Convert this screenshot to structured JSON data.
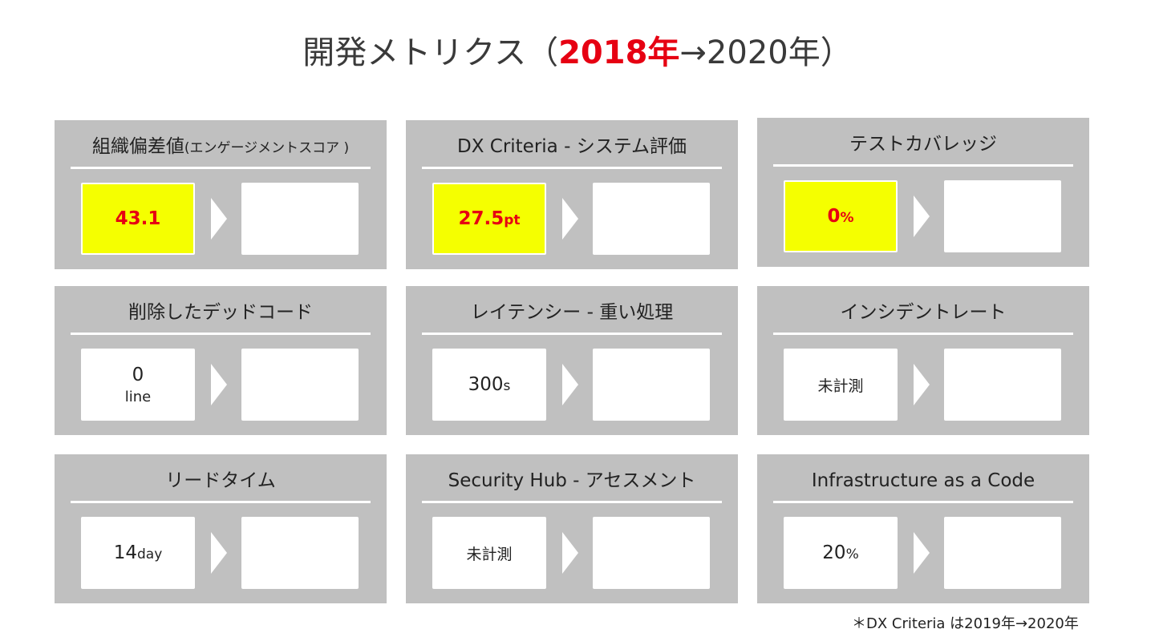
{
  "title": {
    "prefix": "開発メトリクス（",
    "highlight": "2018年",
    "suffix": "→2020年）"
  },
  "colors": {
    "card_background": "#c0c0c0",
    "highlight_red": "#e60012",
    "highlight_yellow": "#f5ff00"
  },
  "metrics": [
    {
      "label": "組織偏差値",
      "label_small": "(エンゲージメントスコア )",
      "value": "43.1",
      "unit": "",
      "highlighted": true
    },
    {
      "label": "DX Criteria - システム評価",
      "value": "27.5",
      "unit": "pt",
      "highlighted": true
    },
    {
      "label": "テストカバレッジ",
      "value": "0",
      "unit": "%",
      "highlighted": true
    },
    {
      "label": "削除したデッドコード",
      "value": "0",
      "unit": "line",
      "highlighted": false
    },
    {
      "label": "レイテンシー - 重い処理",
      "value": "300",
      "unit": "s",
      "highlighted": false
    },
    {
      "label": "インシデントレート",
      "value": "未計測",
      "unit": "",
      "highlighted": false
    },
    {
      "label": "リードタイム",
      "value": "14",
      "unit": "day",
      "highlighted": false
    },
    {
      "label": "Security Hub - アセスメント",
      "value": "未計測",
      "unit": "",
      "highlighted": false
    },
    {
      "label": "Infrastructure as a Code",
      "value": "20",
      "unit": "%",
      "highlighted": false
    }
  ],
  "footnote": "＊DX Criteria は2019年→2020年"
}
